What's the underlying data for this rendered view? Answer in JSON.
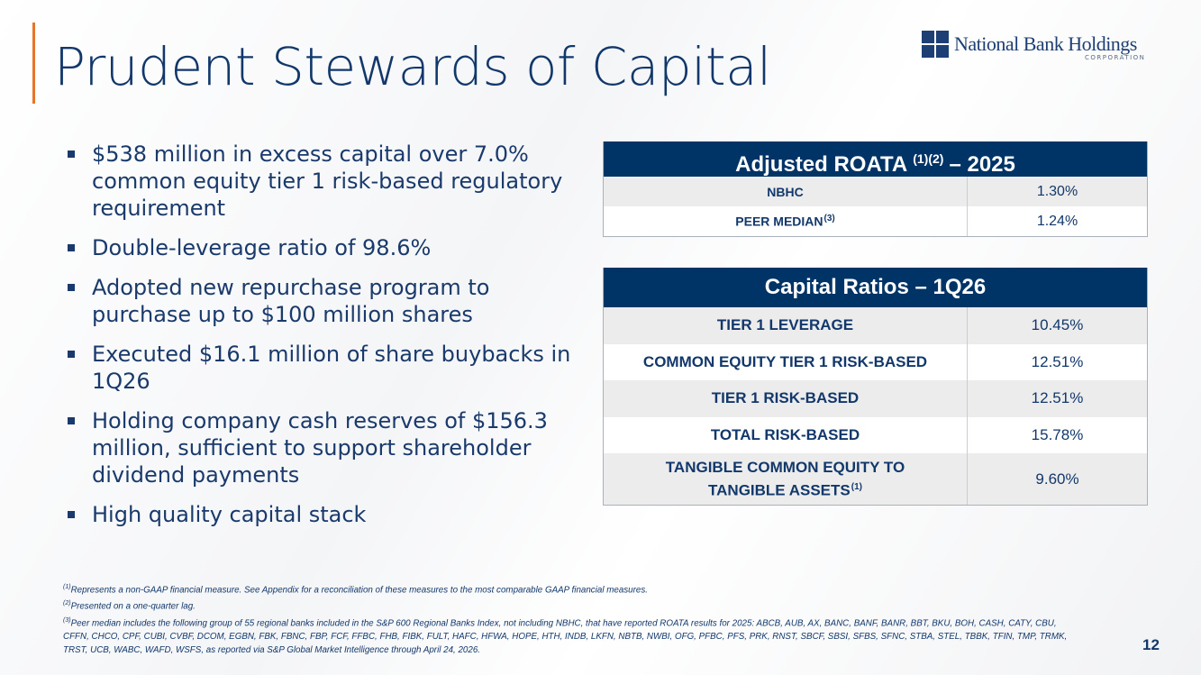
{
  "header": {
    "title": "Prudent Stewards of Capital",
    "logo": {
      "name": "National Bank Holdings",
      "sub": "CORPORATION"
    }
  },
  "bullets": [
    "$538 million in excess capital over 7.0% common equity tier 1 risk-based regulatory requirement",
    "Double-leverage ratio of 98.6%",
    "Adopted new repurchase program to purchase up to $100 million shares",
    "Executed $16.1 million of share buybacks in 1Q26",
    "Holding company cash reserves of $156.3 million, sufficient to support shareholder dividend payments",
    "High quality capital stack"
  ],
  "roata_table": {
    "title": "Adjusted ROATA",
    "title_sup": "(1)(2)",
    "title_suffix": "– 2025",
    "rows": [
      {
        "label": "NBHC",
        "value": "1.30%"
      },
      {
        "label": "PEER MEDIAN",
        "sup": "(3)",
        "value": "1.24%"
      }
    ]
  },
  "capital_table": {
    "title": "Capital Ratios – 1Q26",
    "rows": [
      {
        "label": "TIER 1 LEVERAGE",
        "value": "10.45%"
      },
      {
        "label": "COMMON EQUITY TIER 1 RISK-BASED",
        "value": "12.51%"
      },
      {
        "label": "TIER 1 RISK-BASED",
        "value": "12.51%"
      },
      {
        "label": "TOTAL RISK-BASED",
        "value": "15.78%"
      },
      {
        "label": "TANGIBLE COMMON EQUITY TO TANGIBLE ASSETS",
        "sup": "(1)",
        "value": "9.60%"
      }
    ]
  },
  "footnotes": [
    {
      "mark": "(1)",
      "text": "Represents a non-GAAP financial measure.  See Appendix for a reconciliation of these measures to the most comparable GAAP financial measures."
    },
    {
      "mark": "(2)",
      "text": "Presented on a one-quarter lag."
    },
    {
      "mark": "(3)",
      "text": "Peer median includes the following group of 55 regional banks included in the S&P 600 Regional Banks Index, not including NBHC, that have reported ROATA results for 2025: ABCB, AUB, AX, BANC, BANF, BANR, BBT, BKU, BOH, CASH, CATY, CBU, CFFN, CHCO, CPF, CUBI, CVBF, DCOM, EGBN, FBK, FBNC, FBP, FCF, FFBC, FHB, FIBK, FULT, HAFC, HFWA, HOPE, HTH, INDB, LKFN, NBTB, NWBI, OFG, PFBC, PFS, PRK, RNST, SBCF, SBSI, SFBS, SFNC, STBA, STEL, TBBK, TFIN, TMP, TRMK, TRST, UCB, WABC, WAFD, WSFS, as reported via S&P Global Market Intelligence through April 24, 2026."
    }
  ],
  "page_number": "12"
}
